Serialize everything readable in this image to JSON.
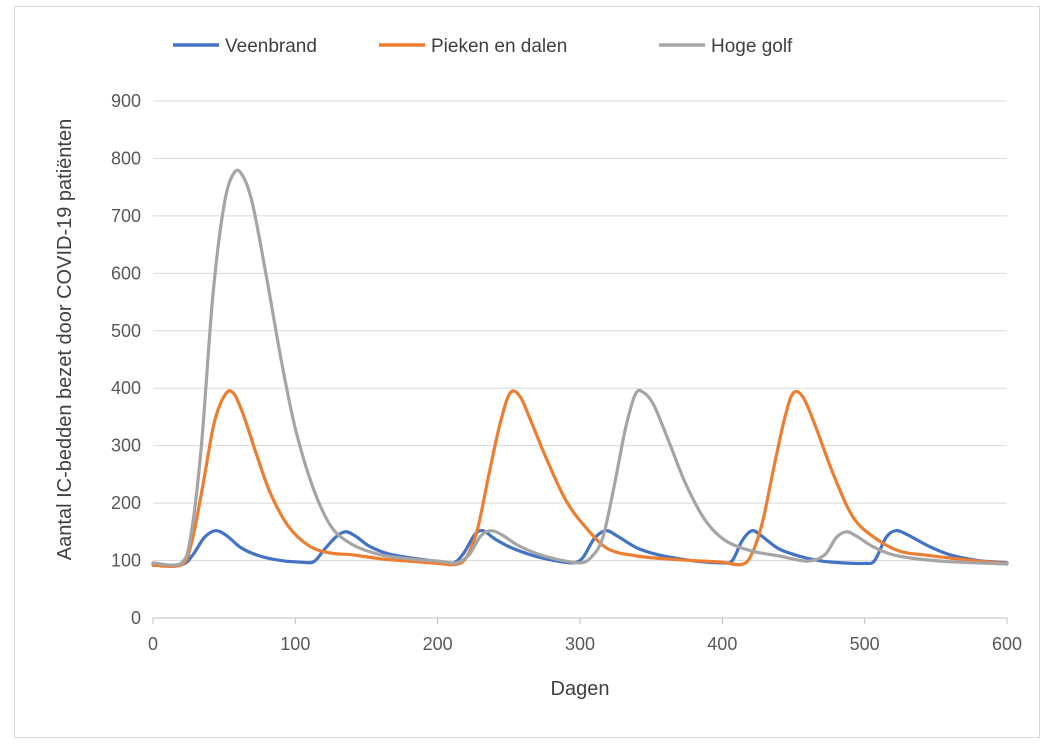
{
  "chart_data": {
    "type": "line",
    "xlabel": "Dagen",
    "ylabel": "Aantal IC-bedden bezet door COVID-19 patiënten",
    "xlim": [
      0,
      600
    ],
    "ylim": [
      0,
      900
    ],
    "x_ticks": [
      0,
      100,
      200,
      300,
      400,
      500,
      600
    ],
    "y_ticks": [
      0,
      100,
      200,
      300,
      400,
      500,
      600,
      700,
      800,
      900
    ],
    "grid": "horizontal",
    "legend_position": "top",
    "series": [
      {
        "name": "Veenbrand",
        "color": "#4472c4",
        "points": [
          [
            0,
            92
          ],
          [
            20,
            93
          ],
          [
            28,
            110
          ],
          [
            36,
            140
          ],
          [
            44,
            152
          ],
          [
            52,
            143
          ],
          [
            62,
            122
          ],
          [
            75,
            108
          ],
          [
            90,
            100
          ],
          [
            105,
            97
          ],
          [
            113,
            98
          ],
          [
            120,
            118
          ],
          [
            128,
            140
          ],
          [
            135,
            150
          ],
          [
            142,
            143
          ],
          [
            152,
            125
          ],
          [
            165,
            112
          ],
          [
            180,
            105
          ],
          [
            195,
            100
          ],
          [
            210,
            95
          ],
          [
            218,
            112
          ],
          [
            226,
            145
          ],
          [
            232,
            152
          ],
          [
            240,
            138
          ],
          [
            252,
            122
          ],
          [
            268,
            108
          ],
          [
            282,
            100
          ],
          [
            295,
            96
          ],
          [
            302,
            105
          ],
          [
            310,
            138
          ],
          [
            318,
            152
          ],
          [
            326,
            143
          ],
          [
            340,
            122
          ],
          [
            355,
            110
          ],
          [
            370,
            103
          ],
          [
            385,
            98
          ],
          [
            400,
            96
          ],
          [
            407,
            100
          ],
          [
            414,
            135
          ],
          [
            421,
            152
          ],
          [
            428,
            142
          ],
          [
            440,
            120
          ],
          [
            455,
            107
          ],
          [
            470,
            99
          ],
          [
            485,
            96
          ],
          [
            500,
            95
          ],
          [
            507,
            100
          ],
          [
            515,
            140
          ],
          [
            522,
            152
          ],
          [
            530,
            145
          ],
          [
            545,
            125
          ],
          [
            560,
            110
          ],
          [
            580,
            100
          ],
          [
            600,
            96
          ]
        ]
      },
      {
        "name": "Pieken en dalen",
        "color": "#ed7d31",
        "points": [
          [
            0,
            92
          ],
          [
            20,
            93
          ],
          [
            27,
            130
          ],
          [
            35,
            230
          ],
          [
            43,
            340
          ],
          [
            51,
            390
          ],
          [
            57,
            390
          ],
          [
            64,
            350
          ],
          [
            72,
            290
          ],
          [
            82,
            220
          ],
          [
            95,
            160
          ],
          [
            110,
            125
          ],
          [
            125,
            113
          ],
          [
            140,
            110
          ],
          [
            160,
            103
          ],
          [
            180,
            99
          ],
          [
            200,
            95
          ],
          [
            212,
            93
          ],
          [
            220,
            105
          ],
          [
            228,
            155
          ],
          [
            236,
            250
          ],
          [
            244,
            340
          ],
          [
            251,
            392
          ],
          [
            258,
            385
          ],
          [
            266,
            340
          ],
          [
            276,
            280
          ],
          [
            290,
            205
          ],
          [
            305,
            155
          ],
          [
            320,
            120
          ],
          [
            340,
            108
          ],
          [
            360,
            103
          ],
          [
            380,
            100
          ],
          [
            400,
            97
          ],
          [
            413,
            93
          ],
          [
            420,
            108
          ],
          [
            428,
            165
          ],
          [
            436,
            260
          ],
          [
            444,
            350
          ],
          [
            450,
            392
          ],
          [
            457,
            383
          ],
          [
            466,
            330
          ],
          [
            478,
            250
          ],
          [
            492,
            175
          ],
          [
            508,
            138
          ],
          [
            525,
            116
          ],
          [
            545,
            109
          ],
          [
            565,
            103
          ],
          [
            585,
            98
          ],
          [
            600,
            95
          ]
        ]
      },
      {
        "name": "Hoge golf",
        "color": "#a5a5a5",
        "points": [
          [
            0,
            96
          ],
          [
            20,
            96
          ],
          [
            27,
            150
          ],
          [
            34,
            300
          ],
          [
            42,
            560
          ],
          [
            50,
            720
          ],
          [
            57,
            775
          ],
          [
            63,
            770
          ],
          [
            70,
            720
          ],
          [
            80,
            590
          ],
          [
            90,
            450
          ],
          [
            100,
            330
          ],
          [
            112,
            230
          ],
          [
            125,
            160
          ],
          [
            140,
            128
          ],
          [
            160,
            110
          ],
          [
            180,
            103
          ],
          [
            200,
            99
          ],
          [
            213,
            96
          ],
          [
            222,
            110
          ],
          [
            230,
            142
          ],
          [
            237,
            152
          ],
          [
            245,
            145
          ],
          [
            256,
            127
          ],
          [
            270,
            112
          ],
          [
            286,
            101
          ],
          [
            300,
            96
          ],
          [
            308,
            106
          ],
          [
            316,
            140
          ],
          [
            324,
            230
          ],
          [
            332,
            330
          ],
          [
            339,
            390
          ],
          [
            345,
            392
          ],
          [
            352,
            370
          ],
          [
            362,
            310
          ],
          [
            374,
            235
          ],
          [
            388,
            170
          ],
          [
            402,
            135
          ],
          [
            420,
            117
          ],
          [
            440,
            108
          ],
          [
            460,
            99
          ],
          [
            472,
            110
          ],
          [
            480,
            140
          ],
          [
            487,
            150
          ],
          [
            494,
            143
          ],
          [
            506,
            124
          ],
          [
            520,
            110
          ],
          [
            540,
            102
          ],
          [
            560,
            98
          ],
          [
            580,
            96
          ],
          [
            600,
            94
          ]
        ]
      }
    ]
  }
}
